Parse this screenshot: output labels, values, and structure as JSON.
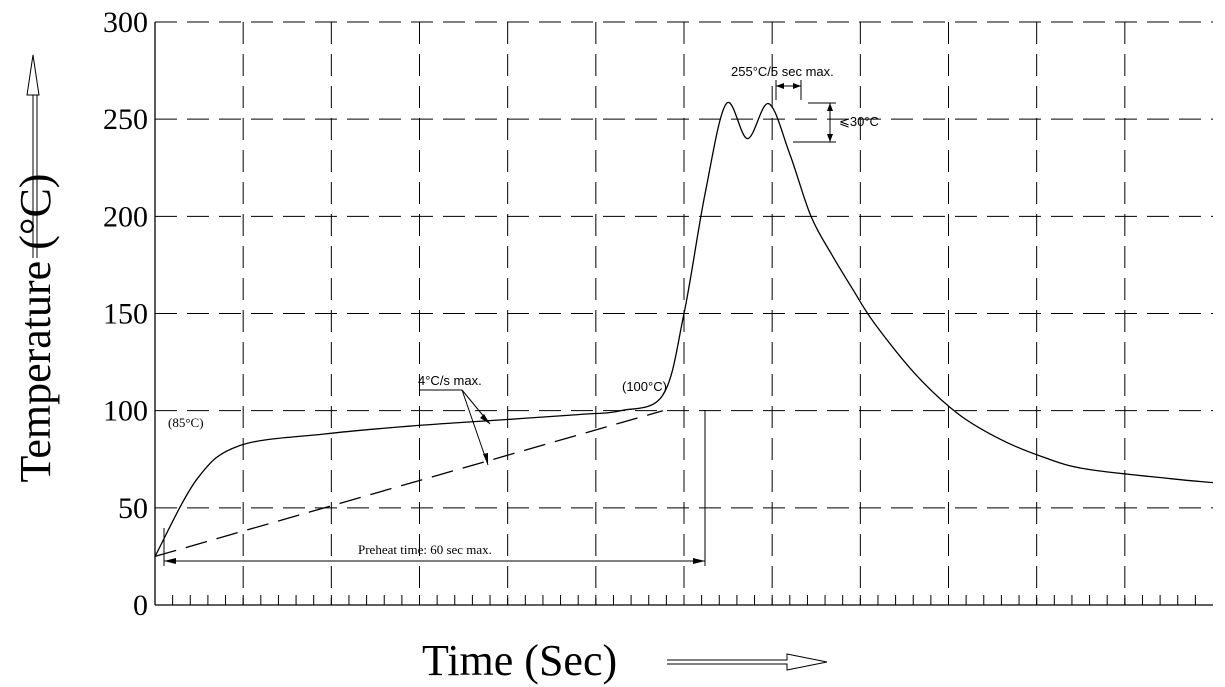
{
  "chart_data": {
    "type": "line",
    "xlabel": "Time (Sec)",
    "ylabel": "Temperature (°C)",
    "ylim": [
      0,
      300
    ],
    "yticks": [
      "0",
      "50",
      "100",
      "150",
      "200",
      "250",
      "300"
    ],
    "grid": true,
    "series": [
      {
        "style": "solid",
        "x": [
          0,
          10,
          20,
          40,
          60,
          80,
          100,
          110,
          120,
          125,
          130,
          135,
          140,
          145,
          150,
          155,
          160,
          165,
          170,
          180,
          190,
          200,
          210,
          220,
          240,
          250
        ],
        "y": [
          25,
          65,
          82,
          88,
          92,
          95,
          98,
          100,
          108,
          150,
          212,
          258,
          240,
          258,
          232,
          200,
          180,
          162,
          145,
          118,
          98,
          85,
          76,
          70,
          65,
          63
        ]
      },
      {
        "style": "dashed",
        "x": [
          0,
          120
        ],
        "y": [
          25,
          100
        ]
      }
    ],
    "annotations": {
      "preheat_start": "(85°C)",
      "preheat_end": "(100°C)",
      "ramp": "4°C/s max.",
      "preheat_time": "Preheat time: 60 sec max.",
      "peak": "255°C/5 sec max.",
      "dip": "⩽30°C"
    }
  }
}
